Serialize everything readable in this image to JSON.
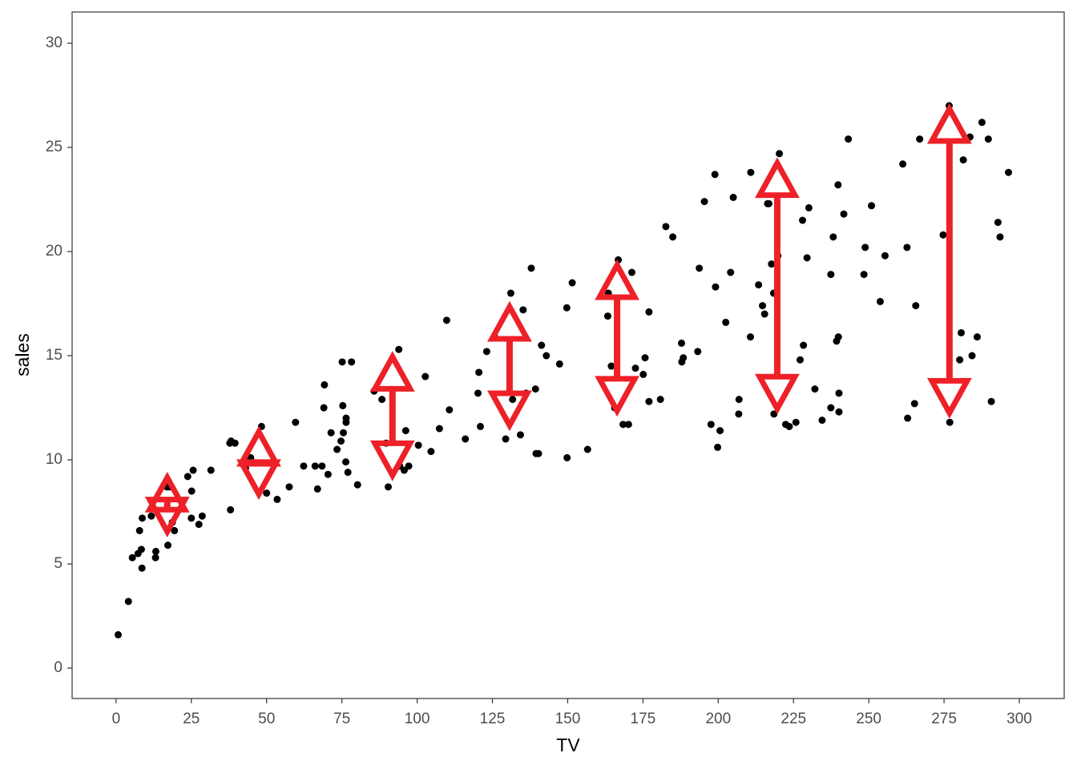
{
  "chart_data": {
    "type": "scatter",
    "x_label": "TV",
    "y_label": "sales",
    "xlim": [
      -14.6,
      314.9
    ],
    "ylim": [
      -1.46,
      31.5
    ],
    "xticks": [
      0,
      25,
      50,
      75,
      100,
      125,
      150,
      175,
      200,
      225,
      250,
      275,
      300
    ],
    "yticks": [
      0,
      5,
      10,
      15,
      20,
      25,
      30
    ],
    "grid": false,
    "color": "#000000",
    "x": [
      0.7,
      4.1,
      5.4,
      7.3,
      7.8,
      8.4,
      8.6,
      8.7,
      11.7,
      13.1,
      13.2,
      16.9,
      17.2,
      17.9,
      18.7,
      19.4,
      23.8,
      25.0,
      25.1,
      25.6,
      27.5,
      28.6,
      31.5,
      37.8,
      38.0,
      38.2,
      39.5,
      43.0,
      44.5,
      44.7,
      48.3,
      50.0,
      53.5,
      57.5,
      59.6,
      62.3,
      66.1,
      66.9,
      68.4,
      69.0,
      69.2,
      70.4,
      71.4,
      73.4,
      74.7,
      75.1,
      75.3,
      75.5,
      76.3,
      76.4,
      76.4,
      78.2,
      77.0,
      80.2,
      85.7,
      88.3,
      89.7,
      90.4,
      93.9,
      94.2,
      95.7,
      96.2,
      97.2,
      100.4,
      102.7,
      104.6,
      107.4,
      109.8,
      110.7,
      116.0,
      120.2,
      120.5,
      121.0,
      123.1,
      125.7,
      129.4,
      131.1,
      131.7,
      134.3,
      135.2,
      136.2,
      137.9,
      139.3,
      139.5,
      140.3,
      141.3,
      142.9,
      147.3,
      149.7,
      149.8,
      151.5,
      156.6,
      163.3,
      163.5,
      164.5,
      165.6,
      166.8,
      168.4,
      170.2,
      171.3,
      172.5,
      175.1,
      175.7,
      177.0,
      177.0,
      180.8,
      182.6,
      184.9,
      187.8,
      187.9,
      188.4,
      193.2,
      193.7,
      195.4,
      197.6,
      198.9,
      199.1,
      199.8,
      200.6,
      202.5,
      204.1,
      205.0,
      206.8,
      206.9,
      210.7,
      210.8,
      213.4,
      214.7,
      215.4,
      216.4,
      216.8,
      217.7,
      218.4,
      218.5,
      219.8,
      220.3,
      222.4,
      223.6,
      225.8,
      227.2,
      228.0,
      228.3,
      229.5,
      230.1,
      232.1,
      234.5,
      237.4,
      237.4,
      238.2,
      239.3,
      239.8,
      239.9,
      240.1,
      240.1,
      241.7,
      243.2,
      248.4,
      248.8,
      250.9,
      253.8,
      255.4,
      261.3,
      262.7,
      262.9,
      265.2,
      265.6,
      266.9,
      276.7,
      276.9,
      280.2,
      281.4,
      280.7,
      283.6,
      284.3,
      286.0,
      287.6,
      289.7,
      290.7,
      292.9,
      293.6,
      296.4,
      274.7
    ],
    "values": [
      1.6,
      3.2,
      5.3,
      5.5,
      6.6,
      5.7,
      4.8,
      7.2,
      7.3,
      5.3,
      5.6,
      8.7,
      5.9,
      8.7,
      7.0,
      6.6,
      9.2,
      7.2,
      8.5,
      9.5,
      6.9,
      7.3,
      9.5,
      10.8,
      7.6,
      10.9,
      10.8,
      9.6,
      10.1,
      10.1,
      11.6,
      8.4,
      8.1,
      8.7,
      11.8,
      9.7,
      9.7,
      8.6,
      9.7,
      12.5,
      13.6,
      9.3,
      11.3,
      10.5,
      10.9,
      14.7,
      12.6,
      11.3,
      9.9,
      11.8,
      12.0,
      14.7,
      9.4,
      8.8,
      13.3,
      12.9,
      10.8,
      8.7,
      15.3,
      9.7,
      9.5,
      11.4,
      9.7,
      10.7,
      14.0,
      10.4,
      11.5,
      16.7,
      12.4,
      11.0,
      13.2,
      14.2,
      11.6,
      15.2,
      15.9,
      11.0,
      18.0,
      12.9,
      11.2,
      17.2,
      13.2,
      19.2,
      13.4,
      10.3,
      10.3,
      15.5,
      15.0,
      14.6,
      17.3,
      10.1,
      18.5,
      10.5,
      16.9,
      18.0,
      14.5,
      12.5,
      19.6,
      11.7,
      11.7,
      19.0,
      14.4,
      14.1,
      14.9,
      12.8,
      17.1,
      12.9,
      21.2,
      20.7,
      15.6,
      14.7,
      14.9,
      15.2,
      19.2,
      22.4,
      11.7,
      23.7,
      18.3,
      10.6,
      11.4,
      16.6,
      19.0,
      22.6,
      12.2,
      12.9,
      15.9,
      23.8,
      18.4,
      17.4,
      17.0,
      22.3,
      22.3,
      19.4,
      18.0,
      12.2,
      19.8,
      24.7,
      11.7,
      11.6,
      11.8,
      14.8,
      21.5,
      15.5,
      19.7,
      22.1,
      13.4,
      11.9,
      12.5,
      18.9,
      20.7,
      15.7,
      23.2,
      15.9,
      13.2,
      12.3,
      21.8,
      25.4,
      18.9,
      20.2,
      22.2,
      17.6,
      19.8,
      24.2,
      20.2,
      12.0,
      12.7,
      17.4,
      25.4,
      27.0,
      11.8,
      14.8,
      24.4,
      16.1,
      25.5,
      15.0,
      15.9,
      26.2,
      25.4,
      12.8,
      21.4,
      20.7,
      23.8,
      20.8
    ],
    "arrows": {
      "color": "#ee2028",
      "x": [
        17,
        47.4,
        91.8,
        130.7,
        166.4,
        219.6,
        276.8
      ],
      "y_top": [
        9.3,
        11.5,
        15.1,
        17.5,
        19.5,
        24.4,
        27.0
      ],
      "y_bottom": [
        6.4,
        8.2,
        9.1,
        11.5,
        12.2,
        12.3,
        12.1
      ]
    }
  }
}
